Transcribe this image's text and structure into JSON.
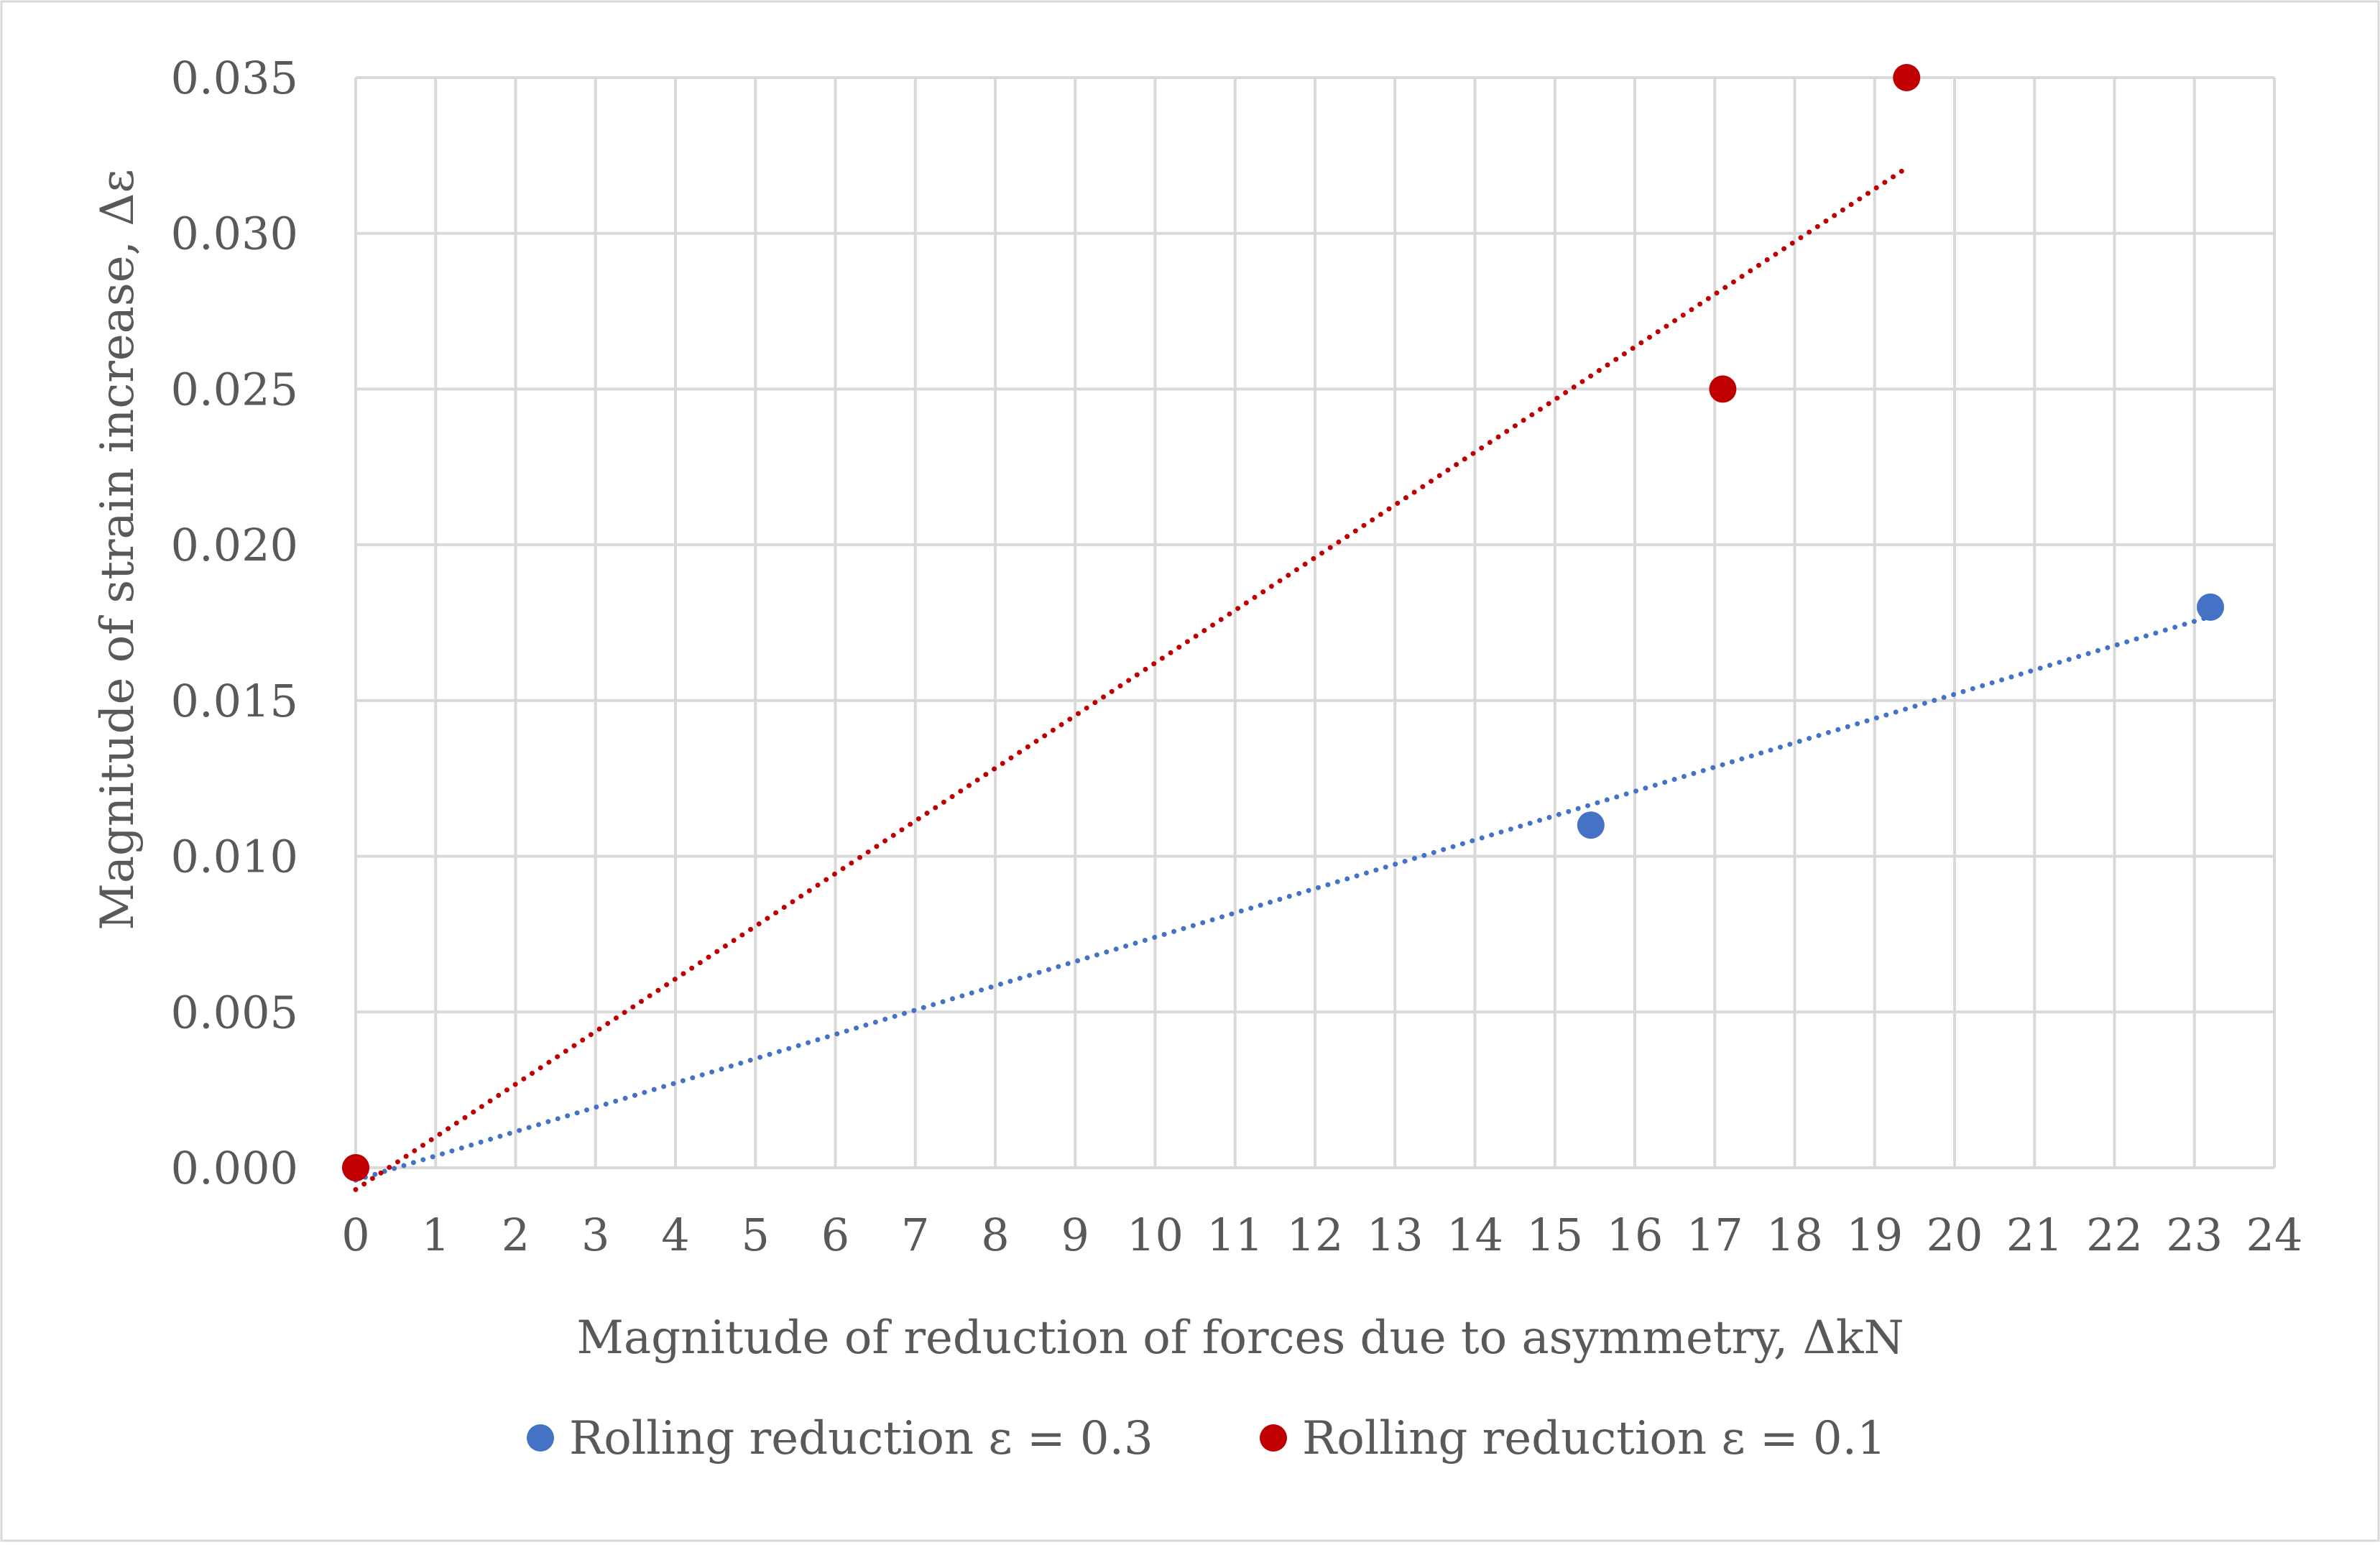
{
  "chart_data": {
    "type": "scatter",
    "title": "",
    "xlabel": "Magnitude of reduction of forces due to asymmetry, ΔkN",
    "ylabel": "Magnitude of strain increase, Δε",
    "xlim": [
      0,
      24
    ],
    "ylim": [
      0,
      0.035
    ],
    "x_ticks": [
      "0",
      "1",
      "2",
      "3",
      "4",
      "5",
      "6",
      "7",
      "8",
      "9",
      "10",
      "11",
      "12",
      "13",
      "14",
      "15",
      "16",
      "17",
      "18",
      "19",
      "20",
      "21",
      "22",
      "23",
      "24"
    ],
    "y_ticks": [
      "0.000",
      "0.005",
      "0.010",
      "0.015",
      "0.020",
      "0.025",
      "0.030",
      "0.035"
    ],
    "grid": true,
    "legend_position": "bottom",
    "series": [
      {
        "name": "Rolling reduction ε = 0.3",
        "color": "#4472C4",
        "points": [
          {
            "x": 0,
            "y": 0
          },
          {
            "x": 15.45,
            "y": 0.011
          },
          {
            "x": 23.2,
            "y": 0.018
          }
        ],
        "trendline": {
          "type": "linear-dotted",
          "x_range": [
            0,
            23.2
          ],
          "y_range": [
            -0.0004,
            0.0177
          ]
        }
      },
      {
        "name": "Rolling reduction ε = 0.1",
        "color": "#C00000",
        "points": [
          {
            "x": 0,
            "y": 0
          },
          {
            "x": 17.1,
            "y": 0.025
          },
          {
            "x": 19.4,
            "y": 0.035
          }
        ],
        "trendline": {
          "type": "linear-dotted",
          "x_range": [
            0,
            19.4
          ],
          "y_range": [
            -0.0007,
            0.0321
          ]
        }
      }
    ]
  }
}
